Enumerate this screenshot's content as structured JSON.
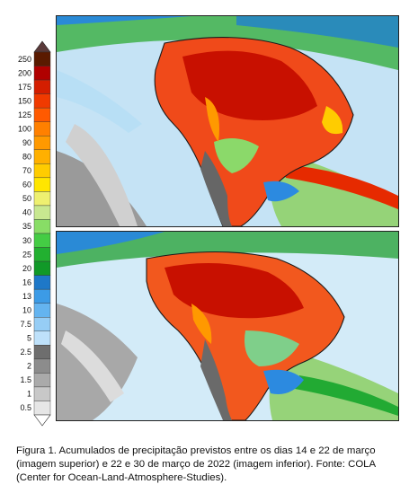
{
  "legend": {
    "labels": [
      "250",
      "200",
      "175",
      "150",
      "125",
      "100",
      "90",
      "80",
      "70",
      "60",
      "50",
      "40",
      "35",
      "30",
      "25",
      "20",
      "16",
      "13",
      "10",
      "7.5",
      "5",
      "2.5",
      "2",
      "1.5",
      "1",
      "0.5"
    ],
    "colors": [
      "#5a1a00",
      "#b00000",
      "#d41e00",
      "#f03a00",
      "#ff5a00",
      "#ff8000",
      "#ff9900",
      "#ffb000",
      "#ffcc00",
      "#ffe600",
      "#eef070",
      "#c8e890",
      "#88dd66",
      "#44cc44",
      "#22b030",
      "#119928",
      "#1e78c8",
      "#3c9be6",
      "#64b4f0",
      "#96cdf5",
      "#bee1fa",
      "#6e6e6e",
      "#8c8c8c",
      "#aaaaaa",
      "#c8c8c8",
      "#e6e6e6"
    ]
  },
  "maps": {
    "top_label": "imagem superior",
    "bottom_label": "imagem inferior"
  },
  "caption": "Figura 1. Acumulados de precipitação previstos entre os dias 14 e 22 de março (imagem superior) e 22 e 30 de março de 2022 (imagem inferior). Fonte: COLA (Center for Ocean-Land-Atmosphere-Studies)."
}
